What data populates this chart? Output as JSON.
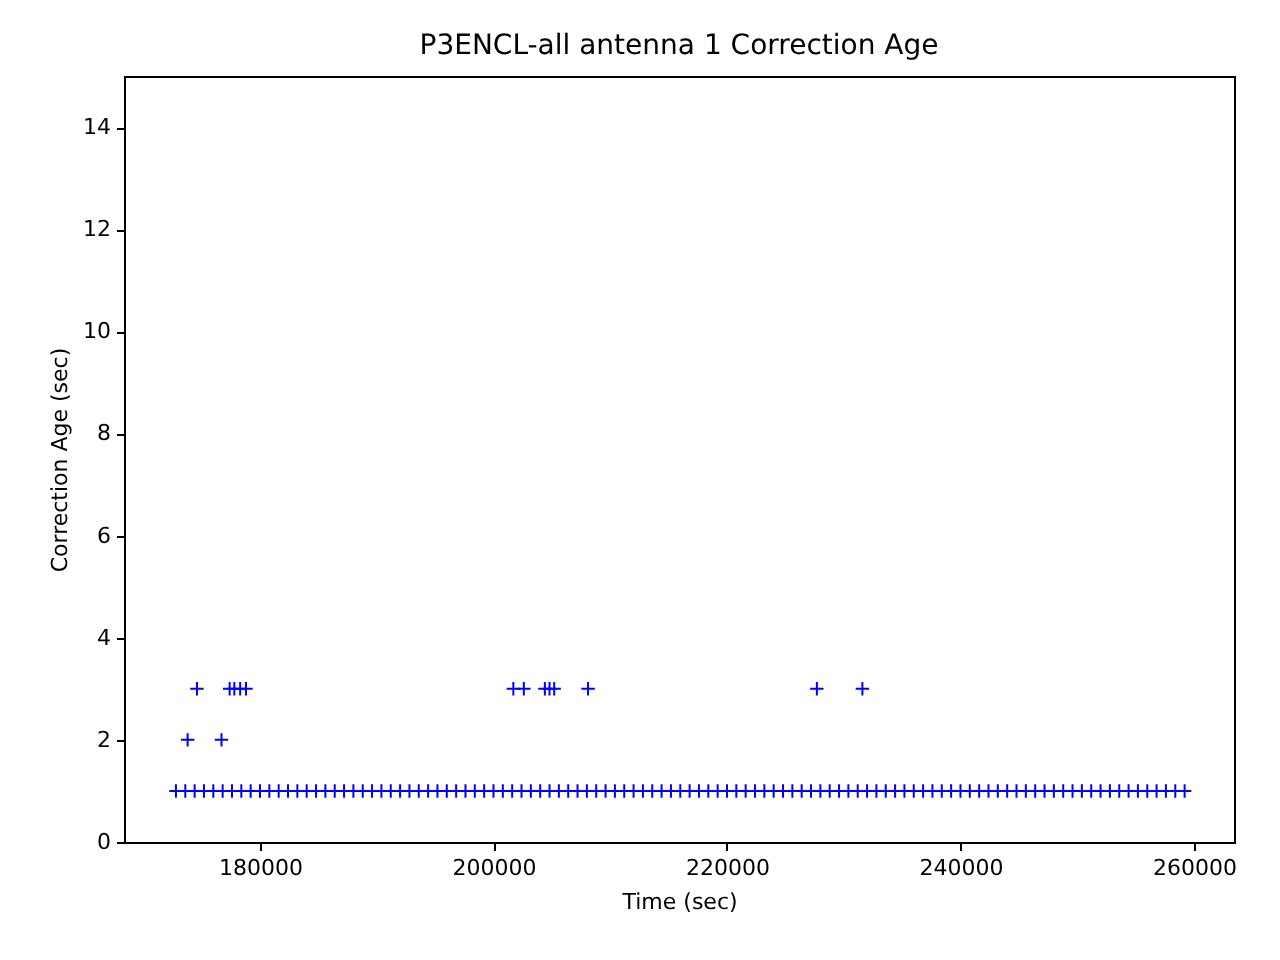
{
  "chart_data": {
    "type": "scatter",
    "title": "P3ENCL-all antenna 1 Correction Age",
    "xlabel": "Time (sec)",
    "ylabel": "Correction Age (sec)",
    "xlim": [
      168350,
      263430
    ],
    "xticks": [
      180000,
      200000,
      220000,
      240000,
      260000
    ],
    "ylim": [
      0,
      15
    ],
    "yticks": [
      0,
      2,
      4,
      6,
      8,
      10,
      12,
      14
    ],
    "grid": false,
    "marker": "cross",
    "series": [
      {
        "color": "#0000ff",
        "x": [
          172800,
          173600,
          174400,
          175200,
          176000,
          176800,
          177600,
          178400,
          179200,
          180000,
          180800,
          181600,
          182400,
          183200,
          184000,
          184800,
          185600,
          186400,
          187200,
          188000,
          188800,
          189600,
          190400,
          191200,
          192000,
          192800,
          193600,
          194400,
          195200,
          196000,
          196800,
          197600,
          198400,
          199200,
          200000,
          200800,
          201600,
          202400,
          203200,
          204000,
          204800,
          205600,
          206400,
          207200,
          208000,
          208800,
          209600,
          210400,
          211200,
          212000,
          212800,
          213600,
          214400,
          215200,
          216000,
          216800,
          217600,
          218400,
          219200,
          220000,
          220800,
          221600,
          222400,
          223200,
          224000,
          224800,
          225600,
          226400,
          227200,
          228000,
          228800,
          229600,
          230400,
          231200,
          232000,
          232800,
          233600,
          234400,
          235200,
          236000,
          236800,
          237600,
          238400,
          239200,
          240000,
          240800,
          241600,
          242400,
          243200,
          244000,
          244800,
          245600,
          246400,
          247200,
          248000,
          248800,
          249600,
          250400,
          251200,
          252000,
          252800,
          253600,
          254400,
          255200,
          256000,
          256800,
          257600,
          258400,
          259200,
          174600,
          177400,
          177800,
          178300,
          178800,
          201700,
          202600,
          204400,
          204800,
          205200,
          208100,
          227700,
          231600,
          173800,
          176700
        ],
        "values": [
          1,
          1,
          1,
          1,
          1,
          1,
          1,
          1,
          1,
          1,
          1,
          1,
          1,
          1,
          1,
          1,
          1,
          1,
          1,
          1,
          1,
          1,
          1,
          1,
          1,
          1,
          1,
          1,
          1,
          1,
          1,
          1,
          1,
          1,
          1,
          1,
          1,
          1,
          1,
          1,
          1,
          1,
          1,
          1,
          1,
          1,
          1,
          1,
          1,
          1,
          1,
          1,
          1,
          1,
          1,
          1,
          1,
          1,
          1,
          1,
          1,
          1,
          1,
          1,
          1,
          1,
          1,
          1,
          1,
          1,
          1,
          1,
          1,
          1,
          1,
          1,
          1,
          1,
          1,
          1,
          1,
          1,
          1,
          1,
          1,
          1,
          1,
          1,
          1,
          1,
          1,
          1,
          1,
          1,
          1,
          1,
          1,
          1,
          1,
          1,
          1,
          1,
          1,
          1,
          1,
          1,
          1,
          1,
          1,
          3,
          3,
          3,
          3,
          3,
          3,
          3,
          3,
          3,
          3,
          3,
          3,
          3,
          2,
          2
        ]
      }
    ]
  }
}
